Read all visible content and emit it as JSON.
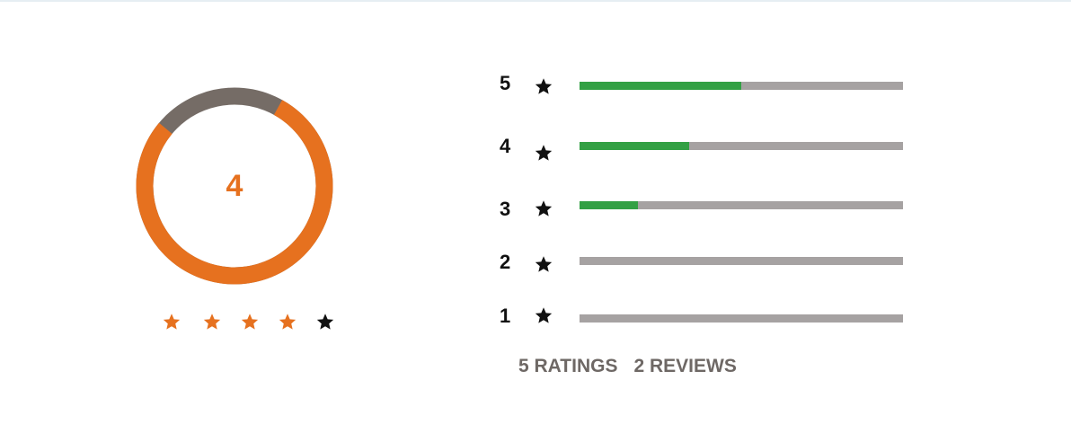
{
  "colors": {
    "accent": "#e6711f",
    "track_dark": "#756c66",
    "bar_fill": "#33a044",
    "bar_track": "#a6a2a2",
    "star_empty": "#111111",
    "totals_text": "#6e6865"
  },
  "summary": {
    "average": "4",
    "gauge_fraction": 0.78,
    "stars": [
      {
        "state": "filled",
        "icon": "star-icon"
      },
      {
        "state": "filled",
        "icon": "star-icon"
      },
      {
        "state": "filled",
        "icon": "star-icon"
      },
      {
        "state": "filled",
        "icon": "star-icon"
      },
      {
        "state": "empty",
        "icon": "star-icon"
      }
    ]
  },
  "distribution": [
    {
      "label": "5",
      "fraction": 0.5
    },
    {
      "label": "4",
      "fraction": 0.34
    },
    {
      "label": "3",
      "fraction": 0.18
    },
    {
      "label": "2",
      "fraction": 0.0
    },
    {
      "label": "1",
      "fraction": 0.0
    }
  ],
  "totals": {
    "ratings": "5 RATINGS",
    "reviews": "2 REVIEWS"
  }
}
